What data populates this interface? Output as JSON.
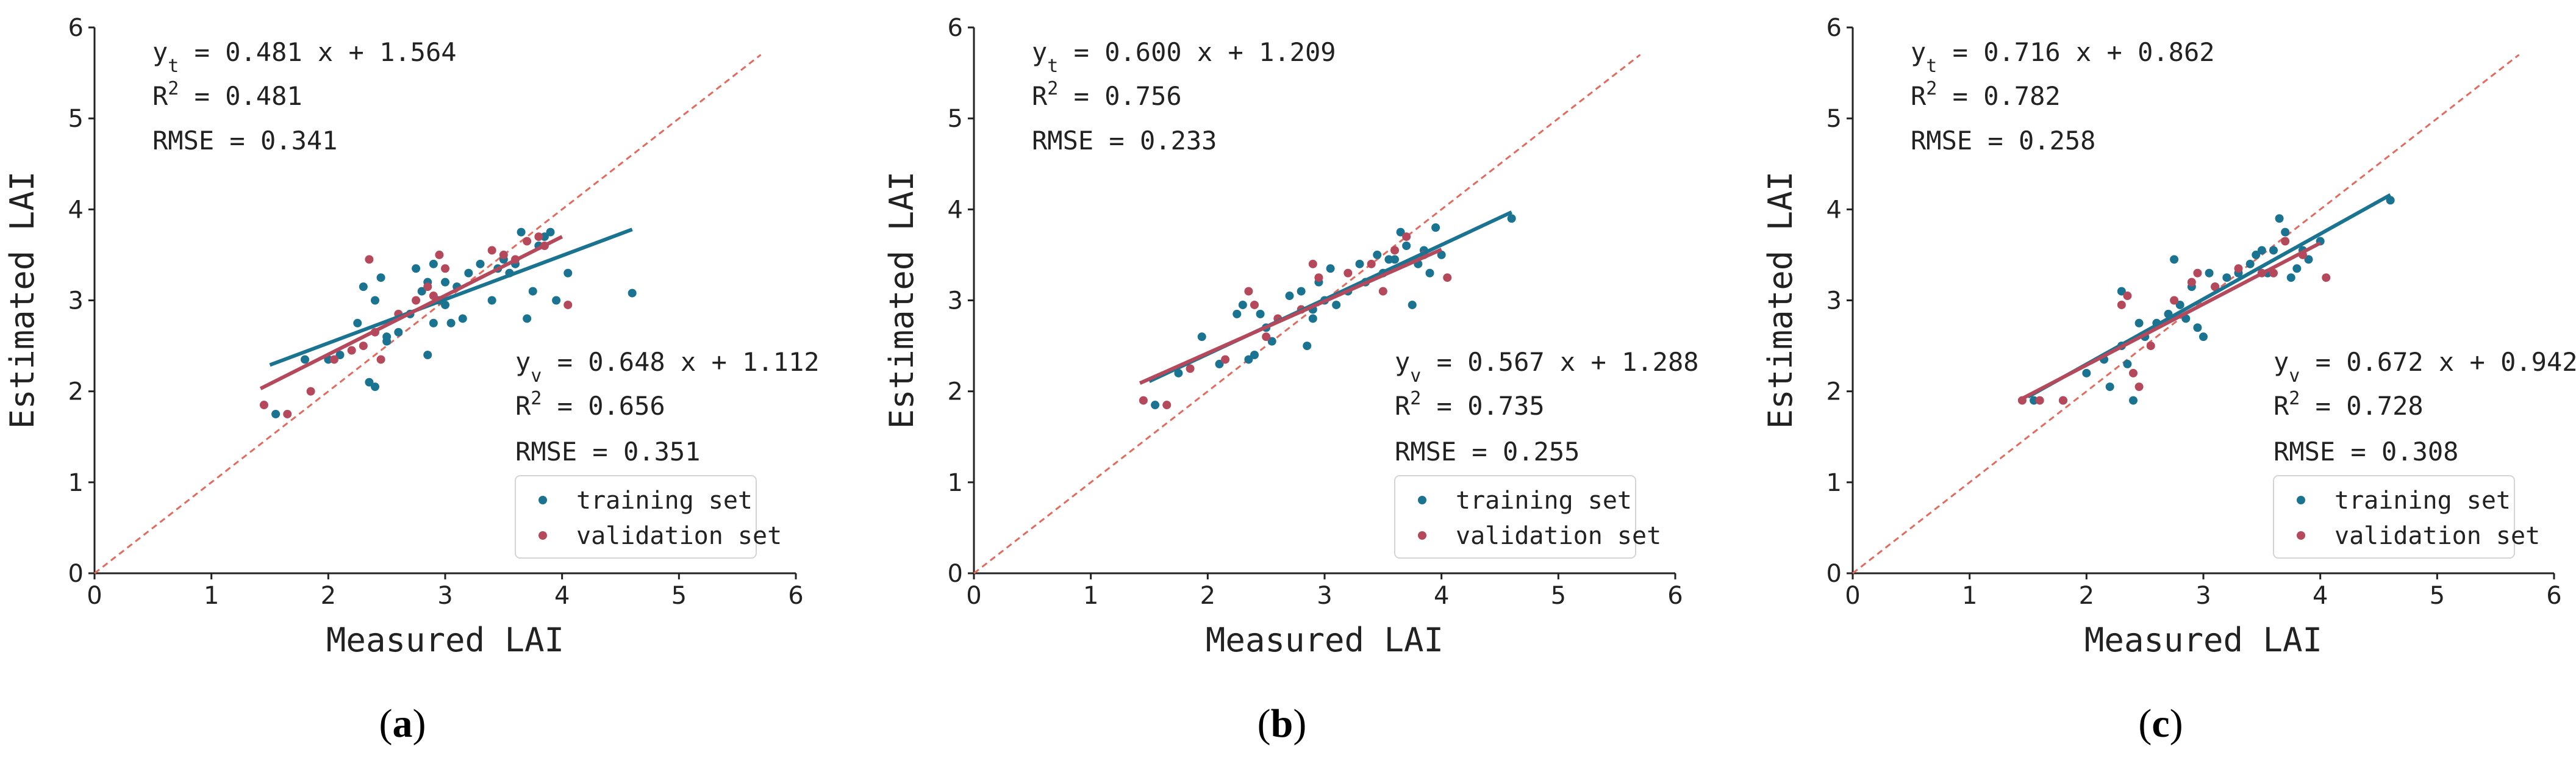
{
  "chart_data": [
    {
      "panel": "a",
      "caption": {
        "open": "(",
        "letter": "a",
        "close": ")"
      },
      "type": "scatter",
      "xlabel": "Measured LAI",
      "ylabel": "Estimated LAI",
      "xlim": [
        0,
        6
      ],
      "ylim": [
        0,
        6
      ],
      "xticks": [
        "0",
        "1",
        "2",
        "3",
        "4",
        "5",
        "6"
      ],
      "yticks": [
        "0",
        "1",
        "2",
        "3",
        "4",
        "5",
        "6"
      ],
      "one_to_one_line": {
        "x": [
          0,
          5.7
        ],
        "y": [
          0,
          5.7
        ]
      },
      "training": {
        "label_main": "y",
        "label_sub": "t",
        "equation_rest": " = 0.481 x + 1.564",
        "r2_base": "R",
        "r2_sup": "2",
        "r2_value": " = 0.481",
        "rmse": "RMSE = 0.341",
        "fit_line": {
          "x": [
            1.5,
            4.6
          ],
          "y": [
            2.29,
            3.78
          ]
        }
      },
      "validation": {
        "label_main": "y",
        "label_sub": "v",
        "equation_rest": " = 0.648 x + 1.112",
        "r2_base": "R",
        "r2_sup": "2",
        "r2_value": " = 0.656",
        "rmse": "RMSE = 0.351",
        "fit_line": {
          "x": [
            1.42,
            4.0
          ],
          "y": [
            2.03,
            3.7
          ]
        }
      },
      "legend": {
        "position": "bottom-right",
        "items": [
          "training set",
          "validation set"
        ]
      },
      "series": [
        {
          "name": "training set",
          "color": "#1a7391",
          "points": [
            [
              1.55,
              1.75
            ],
            [
              1.8,
              2.35
            ],
            [
              2.0,
              2.35
            ],
            [
              2.1,
              2.4
            ],
            [
              2.25,
              2.75
            ],
            [
              2.3,
              3.15
            ],
            [
              2.35,
              2.1
            ],
            [
              2.4,
              2.05
            ],
            [
              2.4,
              3.0
            ],
            [
              2.45,
              3.25
            ],
            [
              2.5,
              2.55
            ],
            [
              2.5,
              2.6
            ],
            [
              2.6,
              2.65
            ],
            [
              2.7,
              2.85
            ],
            [
              2.75,
              3.35
            ],
            [
              2.8,
              3.1
            ],
            [
              2.85,
              3.2
            ],
            [
              2.85,
              2.4
            ],
            [
              2.9,
              2.75
            ],
            [
              2.95,
              3.0
            ],
            [
              3.0,
              3.2
            ],
            [
              3.0,
              2.95
            ],
            [
              3.05,
              2.75
            ],
            [
              3.1,
              3.15
            ],
            [
              3.15,
              2.8
            ],
            [
              3.2,
              3.3
            ],
            [
              3.3,
              3.4
            ],
            [
              3.4,
              3.0
            ],
            [
              3.45,
              3.35
            ],
            [
              3.5,
              3.45
            ],
            [
              3.55,
              3.3
            ],
            [
              3.6,
              3.4
            ],
            [
              3.65,
              3.75
            ],
            [
              3.7,
              2.8
            ],
            [
              3.75,
              3.1
            ],
            [
              3.8,
              3.6
            ],
            [
              3.85,
              3.7
            ],
            [
              3.9,
              3.75
            ],
            [
              3.95,
              3.0
            ],
            [
              4.05,
              3.3
            ],
            [
              4.6,
              3.08
            ],
            [
              2.9,
              3.4
            ]
          ]
        },
        {
          "name": "validation set",
          "color": "#b5495b",
          "points": [
            [
              1.45,
              1.85
            ],
            [
              1.65,
              1.75
            ],
            [
              1.85,
              2.0
            ],
            [
              2.05,
              2.35
            ],
            [
              2.2,
              2.45
            ],
            [
              2.3,
              2.5
            ],
            [
              2.35,
              3.45
            ],
            [
              2.4,
              2.65
            ],
            [
              2.45,
              2.35
            ],
            [
              2.6,
              2.85
            ],
            [
              2.75,
              3.0
            ],
            [
              2.85,
              3.15
            ],
            [
              2.9,
              3.05
            ],
            [
              2.95,
              3.5
            ],
            [
              3.0,
              3.35
            ],
            [
              3.4,
              3.55
            ],
            [
              3.5,
              3.5
            ],
            [
              3.6,
              3.45
            ],
            [
              3.7,
              3.65
            ],
            [
              3.8,
              3.7
            ],
            [
              3.85,
              3.6
            ],
            [
              4.05,
              2.95
            ]
          ]
        }
      ]
    },
    {
      "panel": "b",
      "caption": {
        "open": "(",
        "letter": "b",
        "close": ")"
      },
      "type": "scatter",
      "xlabel": "Measured LAI",
      "ylabel": "Estimated LAI",
      "xlim": [
        0,
        6
      ],
      "ylim": [
        0,
        6
      ],
      "xticks": [
        "0",
        "1",
        "2",
        "3",
        "4",
        "5",
        "6"
      ],
      "yticks": [
        "0",
        "1",
        "2",
        "3",
        "4",
        "5",
        "6"
      ],
      "one_to_one_line": {
        "x": [
          0,
          5.7
        ],
        "y": [
          0,
          5.7
        ]
      },
      "training": {
        "label_main": "y",
        "label_sub": "t",
        "equation_rest": " = 0.600 x + 1.209",
        "r2_base": "R",
        "r2_sup": "2",
        "r2_value": " = 0.756",
        "rmse": "RMSE = 0.233",
        "fit_line": {
          "x": [
            1.5,
            4.6
          ],
          "y": [
            2.11,
            3.97
          ]
        }
      },
      "validation": {
        "label_main": "y",
        "label_sub": "v",
        "equation_rest": " = 0.567 x + 1.288",
        "r2_base": "R",
        "r2_sup": "2",
        "r2_value": " = 0.735",
        "rmse": "RMSE = 0.255",
        "fit_line": {
          "x": [
            1.42,
            4.0
          ],
          "y": [
            2.09,
            3.56
          ]
        }
      },
      "legend": {
        "position": "bottom-right",
        "items": [
          "training set",
          "validation set"
        ]
      },
      "series": [
        {
          "name": "training set",
          "color": "#1a7391",
          "points": [
            [
              1.55,
              1.85
            ],
            [
              1.75,
              2.2
            ],
            [
              1.95,
              2.6
            ],
            [
              2.1,
              2.3
            ],
            [
              2.25,
              2.85
            ],
            [
              2.3,
              2.95
            ],
            [
              2.35,
              2.35
            ],
            [
              2.4,
              2.4
            ],
            [
              2.45,
              2.85
            ],
            [
              2.5,
              2.7
            ],
            [
              2.55,
              2.55
            ],
            [
              2.7,
              3.05
            ],
            [
              2.8,
              3.1
            ],
            [
              2.85,
              2.5
            ],
            [
              2.9,
              2.9
            ],
            [
              2.95,
              3.2
            ],
            [
              3.0,
              3.0
            ],
            [
              3.05,
              3.35
            ],
            [
              3.1,
              2.95
            ],
            [
              3.2,
              3.1
            ],
            [
              3.3,
              3.4
            ],
            [
              3.35,
              3.2
            ],
            [
              3.5,
              3.3
            ],
            [
              3.55,
              3.45
            ],
            [
              3.6,
              3.45
            ],
            [
              3.65,
              3.75
            ],
            [
              3.7,
              3.6
            ],
            [
              3.75,
              2.95
            ],
            [
              3.8,
              3.4
            ],
            [
              3.85,
              3.55
            ],
            [
              3.9,
              3.3
            ],
            [
              3.95,
              3.8
            ],
            [
              4.0,
              3.5
            ],
            [
              4.6,
              3.9
            ],
            [
              2.9,
              2.8
            ],
            [
              3.45,
              3.5
            ]
          ]
        },
        {
          "name": "validation set",
          "color": "#b5495b",
          "points": [
            [
              1.45,
              1.9
            ],
            [
              1.65,
              1.85
            ],
            [
              1.85,
              2.25
            ],
            [
              2.15,
              2.35
            ],
            [
              2.35,
              3.1
            ],
            [
              2.4,
              2.95
            ],
            [
              2.5,
              2.6
            ],
            [
              2.6,
              2.8
            ],
            [
              2.8,
              2.9
            ],
            [
              2.9,
              3.4
            ],
            [
              2.95,
              3.25
            ],
            [
              3.2,
              3.3
            ],
            [
              3.4,
              3.4
            ],
            [
              3.5,
              3.1
            ],
            [
              3.6,
              3.55
            ],
            [
              3.7,
              3.7
            ],
            [
              3.85,
              3.5
            ],
            [
              4.05,
              3.25
            ]
          ]
        }
      ]
    },
    {
      "panel": "c",
      "caption": {
        "open": "(",
        "letter": "c",
        "close": ")"
      },
      "type": "scatter",
      "xlabel": "Measured LAI",
      "ylabel": "Estimated LAI",
      "xlim": [
        0,
        6
      ],
      "ylim": [
        0,
        6
      ],
      "xticks": [
        "0",
        "1",
        "2",
        "3",
        "4",
        "5",
        "6"
      ],
      "yticks": [
        "0",
        "1",
        "2",
        "3",
        "4",
        "5",
        "6"
      ],
      "one_to_one_line": {
        "x": [
          0,
          5.7
        ],
        "y": [
          0,
          5.7
        ]
      },
      "training": {
        "label_main": "y",
        "label_sub": "t",
        "equation_rest": " = 0.716 x + 0.862",
        "r2_base": "R",
        "r2_sup": "2",
        "r2_value": " = 0.782",
        "rmse": "RMSE = 0.258",
        "fit_line": {
          "x": [
            1.5,
            4.6
          ],
          "y": [
            1.94,
            4.16
          ]
        }
      },
      "validation": {
        "label_main": "y",
        "label_sub": "v",
        "equation_rest": " = 0.672 x + 0.942",
        "r2_base": "R",
        "r2_sup": "2",
        "r2_value": " = 0.728",
        "rmse": "RMSE = 0.308",
        "fit_line": {
          "x": [
            1.42,
            4.0
          ],
          "y": [
            1.9,
            3.63
          ]
        }
      },
      "legend": {
        "position": "bottom-right",
        "items": [
          "training set",
          "validation set"
        ]
      },
      "series": [
        {
          "name": "training set",
          "color": "#1a7391",
          "points": [
            [
              1.55,
              1.9
            ],
            [
              1.8,
              1.9
            ],
            [
              2.0,
              2.2
            ],
            [
              2.15,
              2.35
            ],
            [
              2.3,
              2.5
            ],
            [
              2.3,
              3.1
            ],
            [
              2.35,
              2.3
            ],
            [
              2.4,
              1.9
            ],
            [
              2.45,
              2.75
            ],
            [
              2.5,
              2.6
            ],
            [
              2.7,
              2.85
            ],
            [
              2.75,
              3.45
            ],
            [
              2.8,
              2.95
            ],
            [
              2.85,
              2.8
            ],
            [
              2.9,
              3.15
            ],
            [
              2.95,
              2.7
            ],
            [
              3.0,
              2.6
            ],
            [
              3.05,
              3.3
            ],
            [
              3.1,
              3.15
            ],
            [
              3.2,
              3.25
            ],
            [
              3.3,
              3.3
            ],
            [
              3.45,
              3.5
            ],
            [
              3.5,
              3.55
            ],
            [
              3.55,
              3.3
            ],
            [
              3.6,
              3.55
            ],
            [
              3.65,
              3.9
            ],
            [
              3.7,
              3.75
            ],
            [
              3.75,
              3.25
            ],
            [
              3.8,
              3.35
            ],
            [
              3.85,
              3.55
            ],
            [
              3.9,
              3.45
            ],
            [
              4.0,
              3.65
            ],
            [
              4.6,
              4.1
            ],
            [
              2.6,
              2.75
            ],
            [
              3.4,
              3.4
            ],
            [
              2.2,
              2.05
            ]
          ]
        },
        {
          "name": "validation set",
          "color": "#b5495b",
          "points": [
            [
              1.45,
              1.9
            ],
            [
              1.6,
              1.9
            ],
            [
              1.8,
              1.9
            ],
            [
              2.3,
              2.95
            ],
            [
              2.35,
              3.05
            ],
            [
              2.4,
              2.2
            ],
            [
              2.45,
              2.05
            ],
            [
              2.55,
              2.5
            ],
            [
              2.75,
              3.0
            ],
            [
              2.9,
              3.2
            ],
            [
              2.95,
              3.3
            ],
            [
              3.1,
              3.15
            ],
            [
              3.3,
              3.35
            ],
            [
              3.5,
              3.3
            ],
            [
              3.6,
              3.3
            ],
            [
              3.7,
              3.65
            ],
            [
              3.85,
              3.5
            ],
            [
              4.05,
              3.25
            ]
          ]
        }
      ]
    }
  ]
}
